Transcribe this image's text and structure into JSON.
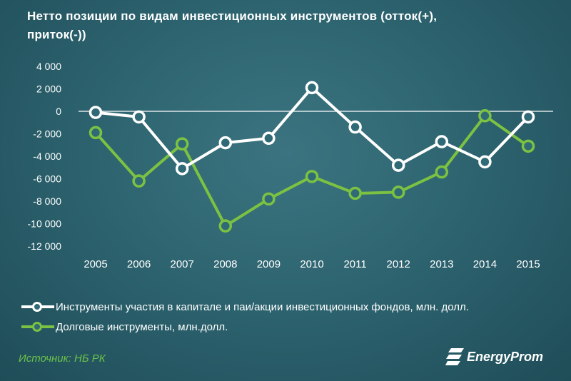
{
  "chart_data": {
    "type": "line",
    "title": "Нетто позиции по видам инвестиционных  инструментов (отток(+),  приток(-))",
    "categories": [
      "2005",
      "2006",
      "2007",
      "2008",
      "2009",
      "2010",
      "2011",
      "2012",
      "2013",
      "2014",
      "2015"
    ],
    "ylim": [
      -12000,
      4000
    ],
    "yticks": [
      4000,
      2000,
      0,
      -2000,
      -4000,
      -6000,
      -8000,
      -10000,
      -12000
    ],
    "ytick_labels": [
      "4 000",
      "2 000",
      "0",
      "-2 000",
      "-4 000",
      "-6 000",
      "-8 000",
      "-10 000",
      "-12 000"
    ],
    "grid": false,
    "legend_position": "bottom",
    "series": [
      {
        "name": "Инструменты участия в капитале и паи/акции инвестиционных фондов, млн. долл.",
        "color": "#ffffff",
        "values": [
          -100,
          -500,
          -5100,
          -2800,
          -2400,
          2100,
          -1400,
          -4800,
          -2700,
          -4500,
          -500
        ]
      },
      {
        "name": "Долговые инструменты, млн.долл.",
        "color": "#7cc242",
        "values": [
          -1900,
          -6200,
          -2900,
          -10200,
          -7800,
          -5800,
          -7300,
          -7200,
          -5400,
          -400,
          -3100
        ]
      }
    ]
  },
  "footer": {
    "source": "Источник: НБ РК",
    "brand": "EnergyProm"
  },
  "colors": {
    "background": "#2d6470",
    "accent_green": "#7cc242",
    "source_green": "#6cc24a"
  }
}
